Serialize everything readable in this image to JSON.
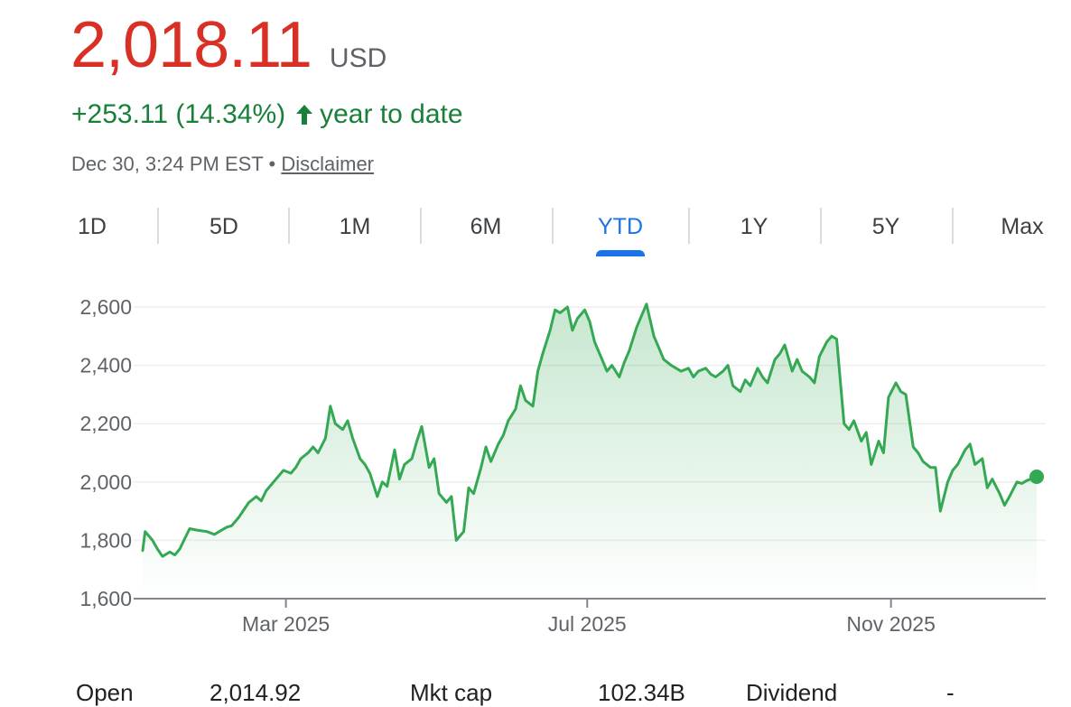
{
  "quote": {
    "price": "2,018.11",
    "currency": "USD",
    "change": "+253.11 (14.34%)",
    "change_period": "year to date",
    "timestamp": "Dec 30, 3:24 PM EST",
    "separator": "•",
    "disclaimer": "Disclaimer"
  },
  "colors": {
    "price": "#d93025",
    "positive": "#188038",
    "line": "#34a853",
    "tab_active": "#1a73e8"
  },
  "range_tabs": [
    "1D",
    "5D",
    "1M",
    "6M",
    "YTD",
    "1Y",
    "5Y",
    "Max"
  ],
  "active_tab": "YTD",
  "stats_partial": {
    "open_label": "Open",
    "open_value": "2,014.92",
    "mktcap_label": "Mkt cap",
    "mktcap_value": "102.34B",
    "dividend_label": "Dividend",
    "dividend_value": "-"
  },
  "chart_data": {
    "type": "area",
    "x_ticks": [
      "Mar 2025",
      "Jul 2025",
      "Nov 2025"
    ],
    "y_ticks": [
      "1,600",
      "1,800",
      "2,000",
      "2,200",
      "2,400",
      "2,600"
    ],
    "ylim": [
      1600,
      2650
    ],
    "grid": true,
    "x_start": "2025-01-02",
    "x_end": "2025-12-30",
    "x_tick_dates": [
      "2025-03-01",
      "2025-07-01",
      "2025-11-01"
    ],
    "series": [
      {
        "points": [
          [
            "2025-01-02",
            1765
          ],
          [
            "2025-01-03",
            1830
          ],
          [
            "2025-01-06",
            1800
          ],
          [
            "2025-01-08",
            1770
          ],
          [
            "2025-01-10",
            1745
          ],
          [
            "2025-01-13",
            1760
          ],
          [
            "2025-01-15",
            1750
          ],
          [
            "2025-01-17",
            1770
          ],
          [
            "2025-01-21",
            1840
          ],
          [
            "2025-01-24",
            1835
          ],
          [
            "2025-01-28",
            1830
          ],
          [
            "2025-01-31",
            1820
          ],
          [
            "2025-02-03",
            1835
          ],
          [
            "2025-02-05",
            1845
          ],
          [
            "2025-02-07",
            1850
          ],
          [
            "2025-02-10",
            1880
          ],
          [
            "2025-02-12",
            1905
          ],
          [
            "2025-02-14",
            1930
          ],
          [
            "2025-02-17",
            1950
          ],
          [
            "2025-02-19",
            1935
          ],
          [
            "2025-02-21",
            1970
          ],
          [
            "2025-02-24",
            2000
          ],
          [
            "2025-02-26",
            2020
          ],
          [
            "2025-02-28",
            2040
          ],
          [
            "2025-03-03",
            2030
          ],
          [
            "2025-03-05",
            2050
          ],
          [
            "2025-03-07",
            2080
          ],
          [
            "2025-03-10",
            2100
          ],
          [
            "2025-03-12",
            2120
          ],
          [
            "2025-03-14",
            2100
          ],
          [
            "2025-03-17",
            2150
          ],
          [
            "2025-03-19",
            2260
          ],
          [
            "2025-03-21",
            2200
          ],
          [
            "2025-03-24",
            2180
          ],
          [
            "2025-03-26",
            2210
          ],
          [
            "2025-03-28",
            2150
          ],
          [
            "2025-03-31",
            2080
          ],
          [
            "2025-04-02",
            2060
          ],
          [
            "2025-04-04",
            2030
          ],
          [
            "2025-04-07",
            1950
          ],
          [
            "2025-04-09",
            2000
          ],
          [
            "2025-04-11",
            1985
          ],
          [
            "2025-04-14",
            2110
          ],
          [
            "2025-04-16",
            2010
          ],
          [
            "2025-04-18",
            2060
          ],
          [
            "2025-04-21",
            2080
          ],
          [
            "2025-04-23",
            2140
          ],
          [
            "2025-04-25",
            2190
          ],
          [
            "2025-04-28",
            2050
          ],
          [
            "2025-04-30",
            2080
          ],
          [
            "2025-05-02",
            1960
          ],
          [
            "2025-05-05",
            1930
          ],
          [
            "2025-05-07",
            1950
          ],
          [
            "2025-05-09",
            1800
          ],
          [
            "2025-05-12",
            1830
          ],
          [
            "2025-05-14",
            1980
          ],
          [
            "2025-05-16",
            1960
          ],
          [
            "2025-05-19",
            2050
          ],
          [
            "2025-05-21",
            2120
          ],
          [
            "2025-05-23",
            2070
          ],
          [
            "2025-05-26",
            2130
          ],
          [
            "2025-05-28",
            2160
          ],
          [
            "2025-05-30",
            2210
          ],
          [
            "2025-06-02",
            2250
          ],
          [
            "2025-06-04",
            2330
          ],
          [
            "2025-06-06",
            2280
          ],
          [
            "2025-06-09",
            2260
          ],
          [
            "2025-06-11",
            2380
          ],
          [
            "2025-06-13",
            2440
          ],
          [
            "2025-06-16",
            2520
          ],
          [
            "2025-06-18",
            2590
          ],
          [
            "2025-06-20",
            2580
          ],
          [
            "2025-06-23",
            2600
          ],
          [
            "2025-06-25",
            2520
          ],
          [
            "2025-06-27",
            2560
          ],
          [
            "2025-06-30",
            2590
          ],
          [
            "2025-07-02",
            2550
          ],
          [
            "2025-07-04",
            2480
          ],
          [
            "2025-07-07",
            2420
          ],
          [
            "2025-07-09",
            2380
          ],
          [
            "2025-07-11",
            2400
          ],
          [
            "2025-07-14",
            2360
          ],
          [
            "2025-07-16",
            2410
          ],
          [
            "2025-07-18",
            2450
          ],
          [
            "2025-07-21",
            2530
          ],
          [
            "2025-07-23",
            2570
          ],
          [
            "2025-07-25",
            2610
          ],
          [
            "2025-07-28",
            2500
          ],
          [
            "2025-07-30",
            2460
          ],
          [
            "2025-08-01",
            2420
          ],
          [
            "2025-08-04",
            2400
          ],
          [
            "2025-08-06",
            2390
          ],
          [
            "2025-08-08",
            2380
          ],
          [
            "2025-08-11",
            2390
          ],
          [
            "2025-08-13",
            2360
          ],
          [
            "2025-08-15",
            2380
          ],
          [
            "2025-08-18",
            2390
          ],
          [
            "2025-08-20",
            2370
          ],
          [
            "2025-08-22",
            2360
          ],
          [
            "2025-08-25",
            2380
          ],
          [
            "2025-08-27",
            2400
          ],
          [
            "2025-08-29",
            2330
          ],
          [
            "2025-09-01",
            2310
          ],
          [
            "2025-09-03",
            2350
          ],
          [
            "2025-09-05",
            2330
          ],
          [
            "2025-09-08",
            2390
          ],
          [
            "2025-09-10",
            2360
          ],
          [
            "2025-09-12",
            2340
          ],
          [
            "2025-09-15",
            2420
          ],
          [
            "2025-09-17",
            2440
          ],
          [
            "2025-09-19",
            2470
          ],
          [
            "2025-09-22",
            2380
          ],
          [
            "2025-09-24",
            2420
          ],
          [
            "2025-09-26",
            2380
          ],
          [
            "2025-09-29",
            2360
          ],
          [
            "2025-10-01",
            2340
          ],
          [
            "2025-10-03",
            2430
          ],
          [
            "2025-10-06",
            2480
          ],
          [
            "2025-10-08",
            2500
          ],
          [
            "2025-10-10",
            2490
          ],
          [
            "2025-10-13",
            2200
          ],
          [
            "2025-10-15",
            2180
          ],
          [
            "2025-10-17",
            2210
          ],
          [
            "2025-10-20",
            2140
          ],
          [
            "2025-10-22",
            2170
          ],
          [
            "2025-10-24",
            2060
          ],
          [
            "2025-10-27",
            2140
          ],
          [
            "2025-10-29",
            2100
          ],
          [
            "2025-10-31",
            2290
          ],
          [
            "2025-11-03",
            2340
          ],
          [
            "2025-11-05",
            2310
          ],
          [
            "2025-11-07",
            2300
          ],
          [
            "2025-11-10",
            2120
          ],
          [
            "2025-11-12",
            2100
          ],
          [
            "2025-11-14",
            2070
          ],
          [
            "2025-11-17",
            2050
          ],
          [
            "2025-11-19",
            2050
          ],
          [
            "2025-11-21",
            1900
          ],
          [
            "2025-11-24",
            2000
          ],
          [
            "2025-11-26",
            2040
          ],
          [
            "2025-11-28",
            2060
          ],
          [
            "2025-12-01",
            2110
          ],
          [
            "2025-12-03",
            2130
          ],
          [
            "2025-12-05",
            2060
          ],
          [
            "2025-12-08",
            2080
          ],
          [
            "2025-12-10",
            1980
          ],
          [
            "2025-12-12",
            2010
          ],
          [
            "2025-12-15",
            1960
          ],
          [
            "2025-12-17",
            1920
          ],
          [
            "2025-12-19",
            1950
          ],
          [
            "2025-12-22",
            2000
          ],
          [
            "2025-12-24",
            1995
          ],
          [
            "2025-12-26",
            2005
          ],
          [
            "2025-12-30",
            2018
          ]
        ]
      }
    ]
  }
}
